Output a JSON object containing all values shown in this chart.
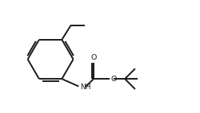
{
  "background_color": "#ffffff",
  "line_color": "#1a1a1a",
  "line_width": 1.4,
  "figsize": [
    2.5,
    1.42
  ],
  "dpi": 100,
  "xlim": [
    0,
    10
  ],
  "ylim": [
    0,
    5.68
  ]
}
